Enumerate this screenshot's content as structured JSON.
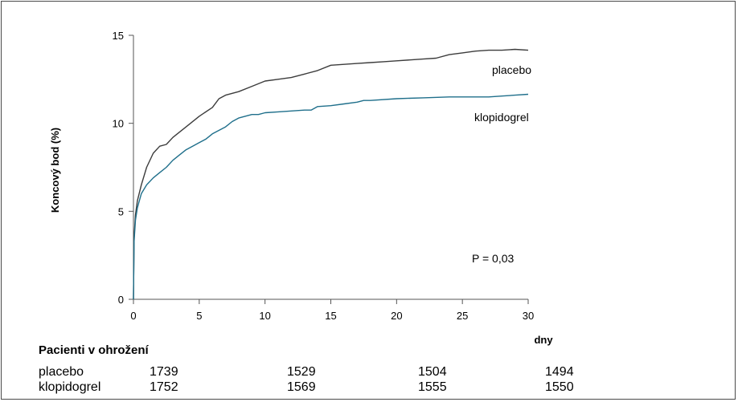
{
  "chart_data": {
    "type": "line",
    "xlabel": "dny",
    "ylabel": "Koncový bod (%)",
    "xlim": [
      0,
      30
    ],
    "ylim": [
      0,
      15
    ],
    "x_ticks": [
      0,
      5,
      10,
      15,
      20,
      25,
      30
    ],
    "y_ticks": [
      0,
      5,
      10,
      15
    ],
    "annotation": "P = 0,03",
    "series": [
      {
        "name": "placebo",
        "color": "#3c3c3c",
        "x": [
          0,
          0.05,
          0.15,
          0.3,
          0.6,
          1,
          1.5,
          2,
          2.5,
          3,
          4,
          5,
          6,
          6.5,
          7,
          8,
          9,
          10,
          11,
          12,
          13,
          14,
          15,
          16,
          17,
          18,
          19,
          20,
          21,
          22,
          23,
          24,
          25,
          26,
          27,
          28,
          29,
          30
        ],
        "values": [
          0,
          3.5,
          4.8,
          5.6,
          6.5,
          7.5,
          8.3,
          8.7,
          8.8,
          9.2,
          9.8,
          10.4,
          10.9,
          11.4,
          11.6,
          11.8,
          12.1,
          12.4,
          12.5,
          12.6,
          12.8,
          13.0,
          13.3,
          13.35,
          13.4,
          13.45,
          13.5,
          13.55,
          13.6,
          13.65,
          13.7,
          13.9,
          14.0,
          14.1,
          14.15,
          14.15,
          14.2,
          14.15
        ]
      },
      {
        "name": "klopidogrel",
        "color": "#1f6f8b",
        "x": [
          0,
          0.05,
          0.15,
          0.3,
          0.6,
          1,
          1.5,
          2,
          2.5,
          3,
          3.5,
          4,
          4.5,
          5,
          5.5,
          6,
          7,
          7.5,
          8,
          9,
          9.5,
          10,
          11,
          12,
          13,
          13.5,
          14,
          15,
          16,
          17,
          17.5,
          18,
          20,
          22,
          24,
          26,
          27,
          28,
          29,
          30
        ],
        "values": [
          0,
          3.3,
          4.5,
          5.2,
          6.0,
          6.5,
          6.9,
          7.2,
          7.5,
          7.9,
          8.2,
          8.5,
          8.7,
          8.9,
          9.1,
          9.4,
          9.8,
          10.1,
          10.3,
          10.5,
          10.5,
          10.6,
          10.65,
          10.7,
          10.75,
          10.75,
          10.95,
          11.0,
          11.1,
          11.2,
          11.3,
          11.3,
          11.4,
          11.45,
          11.5,
          11.5,
          11.5,
          11.55,
          11.6,
          11.65
        ]
      }
    ]
  },
  "risk_table": {
    "title": "Pacienti v ohrožení",
    "rows": [
      {
        "label": "placebo",
        "values": [
          "1739",
          "1529",
          "1504",
          "1494"
        ]
      },
      {
        "label": "klopidogrel",
        "values": [
          "1752",
          "1569",
          "1555",
          "1550"
        ]
      }
    ]
  }
}
